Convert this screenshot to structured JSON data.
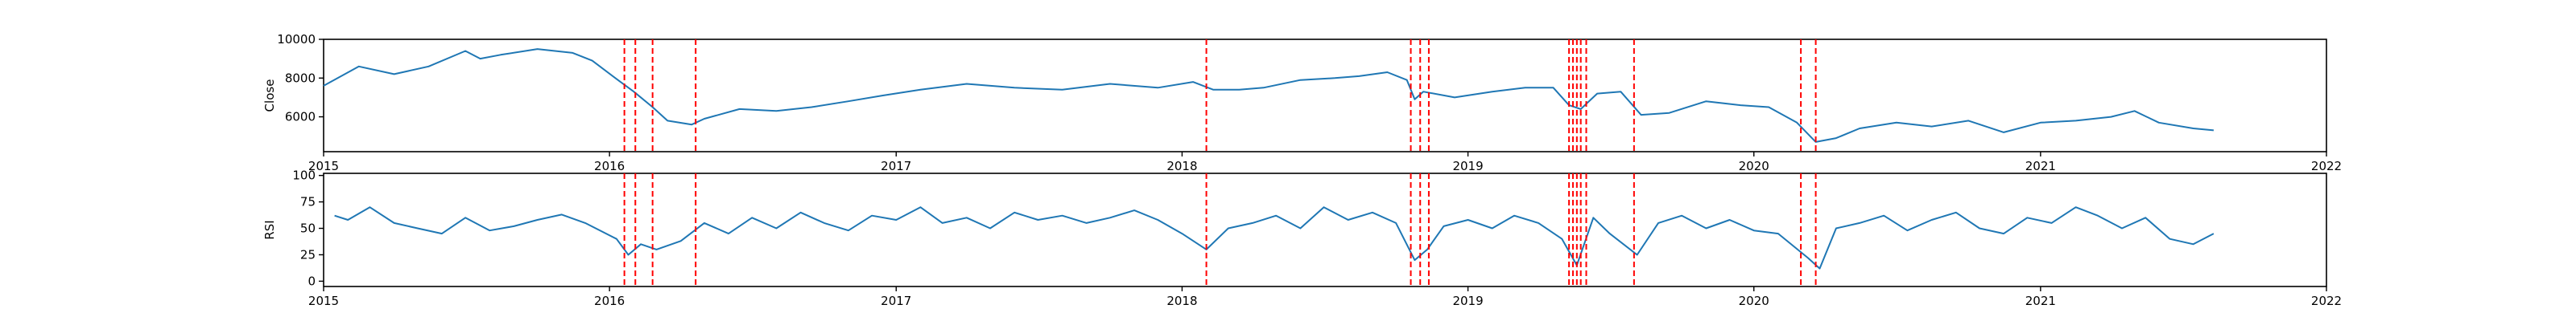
{
  "colors": {
    "line": "#1f77b4",
    "event": "#ff0000",
    "axes": "#000000",
    "background": "#ffffff"
  },
  "chart_data": [
    {
      "type": "line",
      "ylabel": "Close",
      "ylim": [
        4200,
        10000
      ],
      "yticks": [
        6000,
        8000,
        10000
      ],
      "xlim": [
        "2015-01-01",
        "2022-01-01"
      ],
      "x_tick_labels": [
        "2015",
        "2016",
        "2017",
        "2018",
        "2019",
        "2020",
        "2021",
        "2022"
      ],
      "grid": false,
      "series": [
        {
          "x": [
            "2015-01-01",
            "2015-02-15",
            "2015-04-01",
            "2015-05-15",
            "2015-07-01",
            "2015-07-20",
            "2015-08-15",
            "2015-10-01",
            "2015-11-15",
            "2015-12-10",
            "2016-01-15",
            "2016-02-01",
            "2016-02-25",
            "2016-03-15",
            "2016-04-15",
            "2016-05-01",
            "2016-06-15",
            "2016-08-01",
            "2016-09-15",
            "2016-11-01",
            "2016-12-15",
            "2017-02-01",
            "2017-04-01",
            "2017-06-01",
            "2017-08-01",
            "2017-10-01",
            "2017-12-01",
            "2018-01-15",
            "2018-02-10",
            "2018-03-15",
            "2018-04-15",
            "2018-06-01",
            "2018-07-15",
            "2018-08-15",
            "2018-09-20",
            "2018-10-15",
            "2018-10-25",
            "2018-11-05",
            "2018-12-15",
            "2019-02-01",
            "2019-03-15",
            "2019-04-20",
            "2019-05-10",
            "2019-05-25",
            "2019-06-15",
            "2019-07-15",
            "2019-08-10",
            "2019-09-15",
            "2019-11-01",
            "2019-12-15",
            "2020-01-20",
            "2020-02-25",
            "2020-03-20",
            "2020-04-15",
            "2020-05-15",
            "2020-07-01",
            "2020-08-15",
            "2020-10-01",
            "2020-11-15",
            "2021-01-01",
            "2021-02-15",
            "2021-04-01",
            "2021-05-01",
            "2021-06-01",
            "2021-07-15",
            "2021-08-10"
          ],
          "y": [
            7600,
            8600,
            8200,
            8600,
            9400,
            9000,
            9200,
            9500,
            9300,
            8900,
            7800,
            7300,
            6500,
            5800,
            5600,
            5900,
            6400,
            6300,
            6500,
            6800,
            7100,
            7400,
            7700,
            7500,
            7400,
            7700,
            7500,
            7800,
            7400,
            7400,
            7500,
            7900,
            8000,
            8100,
            8300,
            7900,
            6900,
            7300,
            7000,
            7300,
            7500,
            7500,
            6600,
            6400,
            7200,
            7300,
            6100,
            6200,
            6800,
            6600,
            6500,
            5700,
            4700,
            4900,
            5400,
            5700,
            5500,
            5800,
            5200,
            5700,
            5800,
            6000,
            6300,
            5700,
            5400,
            5300
          ]
        }
      ],
      "events": [
        "2016-01-20",
        "2016-02-03",
        "2016-02-25",
        "2016-04-20",
        "2018-02-01",
        "2018-10-20",
        "2018-11-01",
        "2018-11-12",
        "2019-05-10",
        "2019-05-15",
        "2019-05-20",
        "2019-05-25",
        "2019-06-01",
        "2019-08-01",
        "2020-03-01",
        "2020-03-20"
      ]
    },
    {
      "type": "line",
      "ylabel": "RSI",
      "ylim": [
        -5,
        102
      ],
      "yticks": [
        0,
        25,
        50,
        75,
        100
      ],
      "xlim": [
        "2015-01-01",
        "2022-01-01"
      ],
      "x_tick_labels": [
        "2015",
        "2016",
        "2017",
        "2018",
        "2019",
        "2020",
        "2021",
        "2022"
      ],
      "grid": false,
      "series": [
        {
          "x": [
            "2015-01-15",
            "2015-02-01",
            "2015-03-01",
            "2015-04-01",
            "2015-05-01",
            "2015-06-01",
            "2015-07-01",
            "2015-08-01",
            "2015-09-01",
            "2015-10-01",
            "2015-11-01",
            "2015-12-01",
            "2016-01-10",
            "2016-01-25",
            "2016-02-10",
            "2016-03-01",
            "2016-04-01",
            "2016-05-01",
            "2016-06-01",
            "2016-07-01",
            "2016-08-01",
            "2016-09-01",
            "2016-10-01",
            "2016-11-01",
            "2016-12-01",
            "2017-01-01",
            "2017-02-01",
            "2017-03-01",
            "2017-04-01",
            "2017-05-01",
            "2017-06-01",
            "2017-07-01",
            "2017-08-01",
            "2017-09-01",
            "2017-10-01",
            "2017-11-01",
            "2017-12-01",
            "2018-01-01",
            "2018-02-01",
            "2018-03-01",
            "2018-04-01",
            "2018-05-01",
            "2018-06-01",
            "2018-07-01",
            "2018-08-01",
            "2018-09-01",
            "2018-10-01",
            "2018-10-25",
            "2018-11-10",
            "2018-12-01",
            "2019-01-01",
            "2019-02-01",
            "2019-03-01",
            "2019-04-01",
            "2019-05-01",
            "2019-05-20",
            "2019-06-10",
            "2019-07-01",
            "2019-08-05",
            "2019-09-01",
            "2019-10-01",
            "2019-11-01",
            "2019-12-01",
            "2020-01-01",
            "2020-02-01",
            "2020-03-10",
            "2020-03-25",
            "2020-04-15",
            "2020-05-15",
            "2020-06-15",
            "2020-07-15",
            "2020-08-15",
            "2020-09-15",
            "2020-10-15",
            "2020-11-15",
            "2020-12-15",
            "2021-01-15",
            "2021-02-15",
            "2021-03-15",
            "2021-04-15",
            "2021-05-15",
            "2021-06-15",
            "2021-07-15",
            "2021-08-10"
          ],
          "y": [
            62,
            58,
            70,
            55,
            50,
            45,
            60,
            48,
            52,
            58,
            63,
            55,
            40,
            25,
            35,
            30,
            38,
            55,
            45,
            60,
            50,
            65,
            55,
            48,
            62,
            58,
            70,
            55,
            60,
            50,
            65,
            58,
            62,
            55,
            60,
            67,
            58,
            45,
            30,
            50,
            55,
            62,
            50,
            70,
            58,
            65,
            55,
            20,
            30,
            52,
            58,
            50,
            62,
            55,
            40,
            15,
            60,
            45,
            25,
            55,
            62,
            50,
            58,
            48,
            45,
            22,
            12,
            50,
            55,
            62,
            48,
            58,
            65,
            50,
            45,
            60,
            55,
            70,
            62,
            50,
            60,
            40,
            35,
            45
          ]
        }
      ],
      "events": [
        "2016-01-20",
        "2016-02-03",
        "2016-02-25",
        "2016-04-20",
        "2018-02-01",
        "2018-10-20",
        "2018-11-01",
        "2018-11-12",
        "2019-05-10",
        "2019-05-15",
        "2019-05-20",
        "2019-05-25",
        "2019-06-01",
        "2019-08-01",
        "2020-03-01",
        "2020-03-20"
      ]
    }
  ]
}
